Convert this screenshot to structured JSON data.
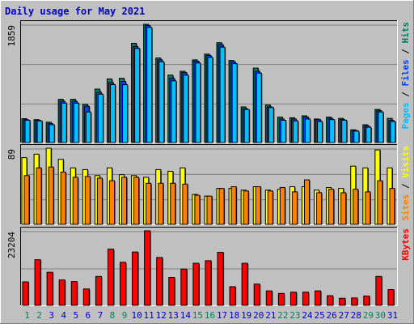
{
  "title": "Daily usage for May 2021",
  "colors": {
    "background": "#c0c0c0",
    "border_light": "#ffffff",
    "border_dark": "#808080",
    "title_text": "#0000cc",
    "grid": "#808080",
    "hits": "#00805c",
    "files": "#0040ff",
    "pages": "#00c0ff",
    "visits": "#ffff00",
    "sites": "#ff8000",
    "kbytes": "#ff0000",
    "weekday_label": "#0000cc",
    "weekend_label": "#00805c"
  },
  "chart_data": [
    {
      "type": "bar",
      "panel": "top",
      "max_label": "1859",
      "right_label_parts": [
        {
          "text": "Pages",
          "color": "#00c0ff"
        },
        {
          "text": " / ",
          "color": "#000000"
        },
        {
          "text": "Files",
          "color": "#0040ff"
        },
        {
          "text": " / ",
          "color": "#000000"
        },
        {
          "text": "Hits",
          "color": "#00805c"
        }
      ],
      "ylim": [
        0,
        1859
      ],
      "categories": [
        "1",
        "2",
        "3",
        "4",
        "5",
        "6",
        "7",
        "8",
        "9",
        "10",
        "11",
        "12",
        "13",
        "14",
        "15",
        "16",
        "17",
        "18",
        "19",
        "20",
        "21",
        "22",
        "23",
        "24",
        "25",
        "26",
        "27",
        "28",
        "29",
        "30",
        "31"
      ],
      "series": [
        {
          "name": "Hits",
          "color": "#00805c",
          "values": [
            375,
            360,
            320,
            680,
            680,
            600,
            840,
            1000,
            1010,
            1560,
            1859,
            1330,
            1060,
            1120,
            1300,
            1390,
            1570,
            1290,
            560,
            1170,
            590,
            400,
            390,
            420,
            370,
            400,
            380,
            200,
            280,
            520,
            380
          ]
        },
        {
          "name": "Files",
          "color": "#0040ff",
          "values": [
            360,
            350,
            300,
            650,
            650,
            570,
            790,
            940,
            960,
            1510,
            1840,
            1300,
            1010,
            1100,
            1280,
            1370,
            1540,
            1270,
            530,
            1120,
            560,
            370,
            370,
            400,
            360,
            380,
            360,
            190,
            260,
            500,
            350
          ]
        },
        {
          "name": "Pages",
          "color": "#00c0ff",
          "values": [
            350,
            340,
            280,
            620,
            620,
            480,
            760,
            910,
            910,
            1480,
            1810,
            1270,
            970,
            1060,
            1250,
            1340,
            1500,
            1240,
            520,
            1090,
            550,
            350,
            340,
            370,
            330,
            360,
            350,
            180,
            240,
            480,
            330
          ]
        }
      ]
    },
    {
      "type": "bar",
      "panel": "middle",
      "max_label": "89",
      "right_label_parts": [
        {
          "text": "Sites",
          "color": "#ff8000"
        },
        {
          "text": " / ",
          "color": "#000000"
        },
        {
          "text": "Visits",
          "color": "#ffff00"
        }
      ],
      "ylim": [
        0,
        89
      ],
      "categories": [
        "1",
        "2",
        "3",
        "4",
        "5",
        "6",
        "7",
        "8",
        "9",
        "10",
        "11",
        "12",
        "13",
        "14",
        "15",
        "16",
        "17",
        "18",
        "19",
        "20",
        "21",
        "22",
        "23",
        "24",
        "25",
        "26",
        "27",
        "28",
        "29",
        "30",
        "31"
      ],
      "series": [
        {
          "name": "Visits",
          "color": "#ffff00",
          "values": [
            78,
            82,
            89,
            76,
            66,
            64,
            57,
            66,
            58,
            57,
            55,
            64,
            62,
            66,
            35,
            33,
            42,
            42,
            40,
            44,
            40,
            41,
            44,
            44,
            40,
            43,
            42,
            68,
            66,
            87,
            66
          ]
        },
        {
          "name": "Sites",
          "color": "#ff8000",
          "values": [
            57,
            66,
            67,
            61,
            55,
            56,
            54,
            51,
            55,
            55,
            48,
            48,
            48,
            47,
            34,
            33,
            42,
            44,
            39,
            44,
            39,
            43,
            38,
            52,
            37,
            41,
            37,
            41,
            38,
            51,
            42
          ]
        }
      ]
    },
    {
      "type": "bar",
      "panel": "bottom",
      "max_label": "23204",
      "right_label_parts": [
        {
          "text": "KBytes",
          "color": "#ff0000"
        }
      ],
      "ylim": [
        0,
        23204
      ],
      "categories": [
        "1",
        "2",
        "3",
        "4",
        "5",
        "6",
        "7",
        "8",
        "9",
        "10",
        "11",
        "12",
        "13",
        "14",
        "15",
        "16",
        "17",
        "18",
        "19",
        "20",
        "21",
        "22",
        "23",
        "24",
        "25",
        "26",
        "27",
        "28",
        "29",
        "30",
        "31"
      ],
      "series": [
        {
          "name": "KBytes",
          "color": "#ff0000",
          "values": [
            7300,
            14200,
            10300,
            7900,
            7400,
            5100,
            9000,
            17500,
            13400,
            16600,
            23204,
            14900,
            8700,
            11300,
            13100,
            13900,
            16500,
            5800,
            13100,
            6600,
            4500,
            3700,
            4100,
            4100,
            4500,
            3000,
            2200,
            2300,
            2900,
            9000,
            4900
          ]
        }
      ]
    }
  ]
}
